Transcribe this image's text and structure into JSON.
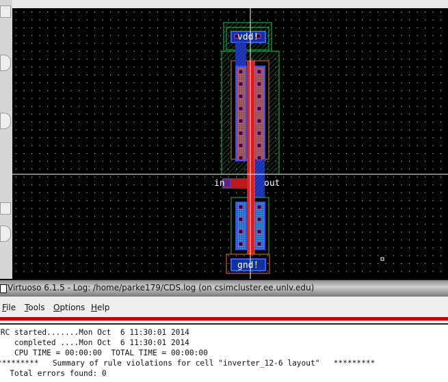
{
  "window": {
    "title": "Virtuoso 6.1.5 - Log: /home/parke179/CDS.log (on csimcluster.ee.unlv.edu)"
  },
  "menu": [
    {
      "label": "File",
      "mnemonic": "F",
      "rest": "ile"
    },
    {
      "label": "Tools",
      "mnemonic": "T",
      "rest": "ools"
    },
    {
      "label": "Options",
      "mnemonic": "O",
      "rest": "ptions"
    },
    {
      "label": "Help",
      "mnemonic": "H",
      "rest": "elp"
    }
  ],
  "log_lines": [
    "DRC started.......Mon Oct  6 11:30:01 2014",
    "    completed ....Mon Oct  6 11:30:01 2014",
    "    CPU TIME = 00:00:00  TOTAL TIME = 00:00:00",
    "*********   Summary of rule violations for cell \"inverter_12-6 layout\"   *********",
    "   Total errors found: 0"
  ],
  "layout": {
    "labels": {
      "vdd": "vdd!",
      "in": "in",
      "out": "out",
      "gnd": "gnd!"
    },
    "colors": {
      "background": "#000000",
      "poly": "#ff2020",
      "metal1": "#2040ff",
      "nwell": "#20a040",
      "select": "#e08020",
      "contact": "#ff40ff",
      "grid": "#c8c8c8"
    }
  },
  "accent_color": "#c80000"
}
